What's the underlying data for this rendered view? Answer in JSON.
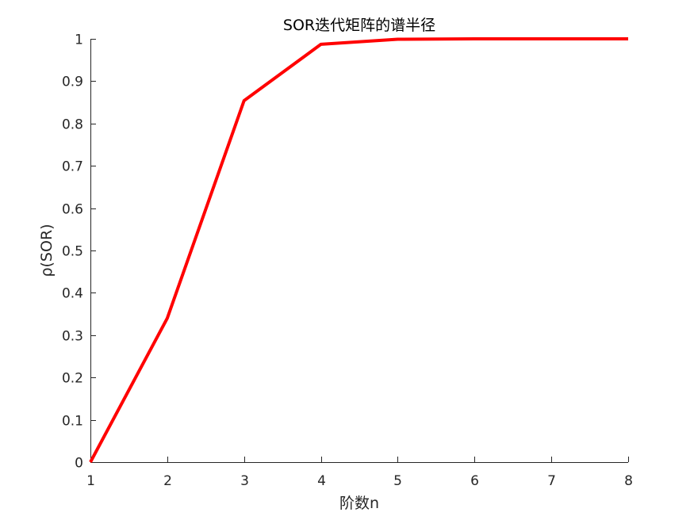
{
  "chart_data": {
    "type": "line",
    "title": "SOR迭代矩阵的谱半径",
    "xlabel": "阶数n",
    "ylabel": "ρ(SOR)",
    "xlim": [
      1,
      8
    ],
    "ylim": [
      0,
      1
    ],
    "xticks": [
      1,
      2,
      3,
      4,
      5,
      6,
      7,
      8
    ],
    "xtick_labels": [
      "1",
      "2",
      "3",
      "4",
      "5",
      "6",
      "7",
      "8"
    ],
    "yticks": [
      0,
      0.1,
      0.2,
      0.3,
      0.4,
      0.5,
      0.6,
      0.7,
      0.8,
      0.9,
      1
    ],
    "ytick_labels": [
      "0",
      "0.1",
      "0.2",
      "0.3",
      "0.4",
      "0.5",
      "0.6",
      "0.7",
      "0.8",
      "0.9",
      "1"
    ],
    "grid": false,
    "series": [
      {
        "color": "#ff0000",
        "x": [
          1,
          2,
          3,
          4,
          5,
          6,
          7,
          8
        ],
        "y": [
          0,
          0.34,
          0.854,
          0.987,
          0.999,
          1.0,
          1.0,
          1.0
        ]
      }
    ]
  }
}
